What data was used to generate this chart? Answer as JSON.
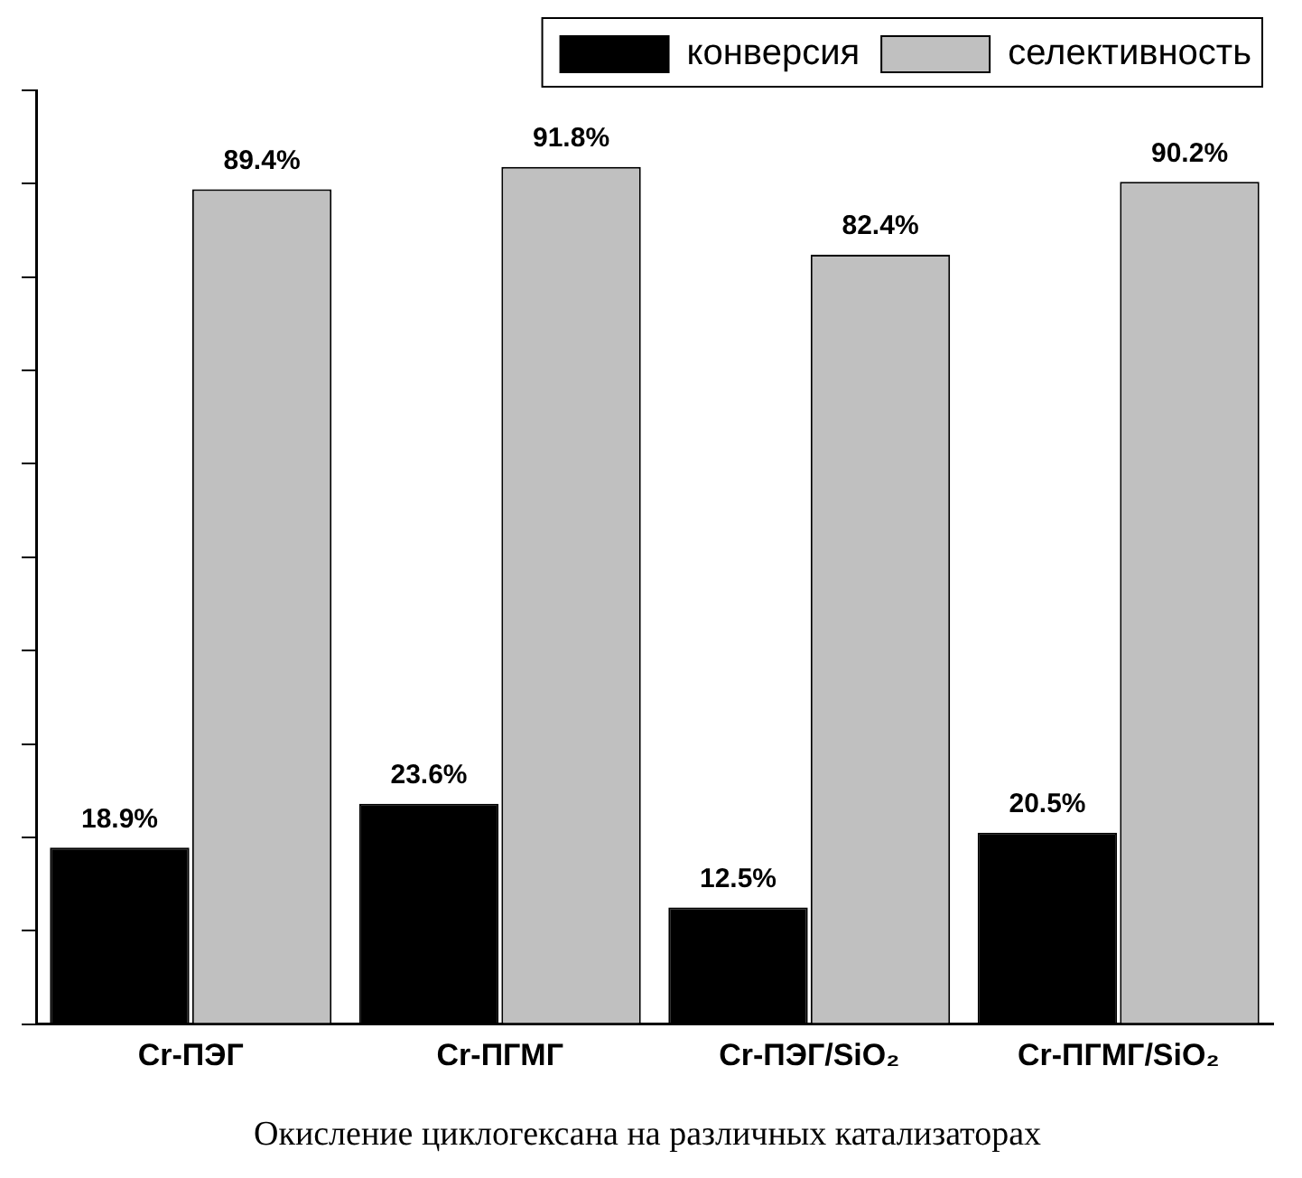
{
  "chart_data": {
    "type": "bar",
    "title": "Окисление циклогексана на различных катализаторах",
    "categories": [
      "Cr-ПЭГ",
      "Cr-ПГМГ",
      "Cr-ПЭГ/SiO₂",
      "Cr-ПГМГ/SiO₂"
    ],
    "series": [
      {
        "name": "конверсия",
        "color": "#000000",
        "values": [
          18.9,
          23.6,
          12.5,
          20.5
        ],
        "value_labels": [
          "18.9%",
          "23.6%",
          "12.5%",
          "20.5%"
        ]
      },
      {
        "name": "селективность",
        "color": "#c0c0c0",
        "values": [
          89.4,
          91.8,
          82.4,
          90.2
        ],
        "value_labels": [
          "89.4%",
          "91.8%",
          "82.4%",
          "90.2%"
        ]
      }
    ],
    "tick_labels": "x",
    "grid": false,
    "legend": "top right"
  }
}
